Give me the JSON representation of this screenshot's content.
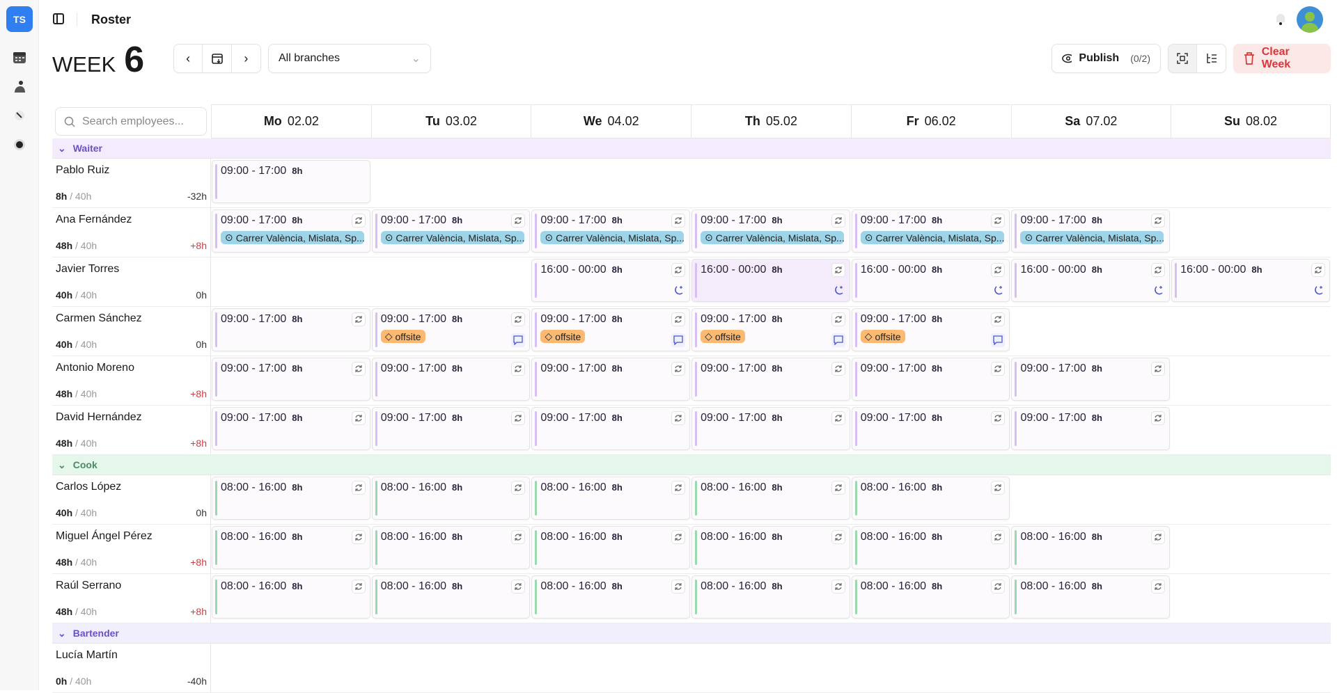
{
  "app": {
    "logo": "TS",
    "title": "Roster"
  },
  "sidebar": {
    "items": [
      {
        "icon": "calendar-icon"
      },
      {
        "icon": "users-icon"
      },
      {
        "icon": "tools-icon"
      },
      {
        "icon": "settings-icon"
      }
    ]
  },
  "week": {
    "label": "WEEK",
    "number": "6"
  },
  "branch": {
    "selected": "All branches"
  },
  "publish": {
    "label": "Publish",
    "count": "(0/2)"
  },
  "clear": {
    "label": "Clear Week"
  },
  "search": {
    "placeholder": "Search employees..."
  },
  "days": [
    {
      "d": "Mo",
      "date": "02.02"
    },
    {
      "d": "Tu",
      "date": "03.02"
    },
    {
      "d": "We",
      "date": "04.02"
    },
    {
      "d": "Th",
      "date": "05.02"
    },
    {
      "d": "Fr",
      "date": "06.02"
    },
    {
      "d": "Sa",
      "date": "07.02"
    },
    {
      "d": "Su",
      "date": "08.02"
    }
  ],
  "colors": {
    "Waiter": {
      "bg": "#f4ecfc",
      "fg": "#6a4fc7",
      "bar": "#d6bff2"
    },
    "Cook": {
      "bg": "#e5f6ea",
      "fg": "#4c8a63",
      "bar": "#9ad8ae"
    },
    "Bartender": {
      "bg": "#f1effc",
      "fg": "#6a4fc7",
      "bar": "#d6bff2"
    }
  },
  "location": "Carrer València, Mislata, Sp...",
  "tag": "offsite",
  "groups": [
    {
      "name": "Waiter",
      "employees": [
        {
          "name": "Pablo Ruiz",
          "hours": "8h",
          "target": "40h",
          "diff": "-32h",
          "shifts": [
            {
              "t": "09:00 - 17:00",
              "h": "8h",
              "nosync": true
            },
            null,
            null,
            null,
            null,
            null,
            null
          ]
        },
        {
          "name": "Ana Fernández",
          "hours": "48h",
          "target": "40h",
          "diff": "+8h",
          "shifts": [
            {
              "t": "09:00 - 17:00",
              "h": "8h",
              "loc": true
            },
            {
              "t": "09:00 - 17:00",
              "h": "8h",
              "loc": true
            },
            {
              "t": "09:00 - 17:00",
              "h": "8h",
              "loc": true
            },
            {
              "t": "09:00 - 17:00",
              "h": "8h",
              "loc": true
            },
            {
              "t": "09:00 - 17:00",
              "h": "8h",
              "loc": true
            },
            {
              "t": "09:00 - 17:00",
              "h": "8h",
              "loc": true
            },
            null
          ]
        },
        {
          "name": "Javier Torres",
          "hours": "40h",
          "target": "40h",
          "diff": "0h",
          "shifts": [
            null,
            null,
            {
              "t": "16:00 - 00:00",
              "h": "8h",
              "night": true
            },
            {
              "t": "16:00 - 00:00",
              "h": "8h",
              "night": true,
              "hl": true
            },
            {
              "t": "16:00 - 00:00",
              "h": "8h",
              "night": true
            },
            {
              "t": "16:00 - 00:00",
              "h": "8h",
              "night": true
            },
            {
              "t": "16:00 - 00:00",
              "h": "8h",
              "night": true
            }
          ]
        },
        {
          "name": "Carmen Sánchez",
          "hours": "40h",
          "target": "40h",
          "diff": "0h",
          "shifts": [
            {
              "t": "09:00 - 17:00",
              "h": "8h"
            },
            {
              "t": "09:00 - 17:00",
              "h": "8h",
              "tag": true
            },
            {
              "t": "09:00 - 17:00",
              "h": "8h",
              "tag": true
            },
            {
              "t": "09:00 - 17:00",
              "h": "8h",
              "tag": true
            },
            {
              "t": "09:00 - 17:00",
              "h": "8h",
              "tag": true
            },
            null,
            null
          ]
        },
        {
          "name": "Antonio Moreno",
          "hours": "48h",
          "target": "40h",
          "diff": "+8h",
          "shifts": [
            {
              "t": "09:00 - 17:00",
              "h": "8h"
            },
            {
              "t": "09:00 - 17:00",
              "h": "8h"
            },
            {
              "t": "09:00 - 17:00",
              "h": "8h"
            },
            {
              "t": "09:00 - 17:00",
              "h": "8h"
            },
            {
              "t": "09:00 - 17:00",
              "h": "8h"
            },
            {
              "t": "09:00 - 17:00",
              "h": "8h"
            },
            null
          ]
        },
        {
          "name": "David Hernández",
          "hours": "48h",
          "target": "40h",
          "diff": "+8h",
          "shifts": [
            {
              "t": "09:00 - 17:00",
              "h": "8h"
            },
            {
              "t": "09:00 - 17:00",
              "h": "8h"
            },
            {
              "t": "09:00 - 17:00",
              "h": "8h"
            },
            {
              "t": "09:00 - 17:00",
              "h": "8h"
            },
            {
              "t": "09:00 - 17:00",
              "h": "8h"
            },
            {
              "t": "09:00 - 17:00",
              "h": "8h"
            },
            null
          ]
        }
      ]
    },
    {
      "name": "Cook",
      "employees": [
        {
          "name": "Carlos López",
          "hours": "40h",
          "target": "40h",
          "diff": "0h",
          "shifts": [
            {
              "t": "08:00 - 16:00",
              "h": "8h"
            },
            {
              "t": "08:00 - 16:00",
              "h": "8h"
            },
            {
              "t": "08:00 - 16:00",
              "h": "8h"
            },
            {
              "t": "08:00 - 16:00",
              "h": "8h"
            },
            {
              "t": "08:00 - 16:00",
              "h": "8h"
            },
            null,
            null
          ]
        },
        {
          "name": "Miguel Ángel Pérez",
          "hours": "48h",
          "target": "40h",
          "diff": "+8h",
          "shifts": [
            {
              "t": "08:00 - 16:00",
              "h": "8h"
            },
            {
              "t": "08:00 - 16:00",
              "h": "8h"
            },
            {
              "t": "08:00 - 16:00",
              "h": "8h"
            },
            {
              "t": "08:00 - 16:00",
              "h": "8h"
            },
            {
              "t": "08:00 - 16:00",
              "h": "8h"
            },
            {
              "t": "08:00 - 16:00",
              "h": "8h"
            },
            null
          ]
        },
        {
          "name": "Raúl Serrano",
          "hours": "48h",
          "target": "40h",
          "diff": "+8h",
          "shifts": [
            {
              "t": "08:00 - 16:00",
              "h": "8h"
            },
            {
              "t": "08:00 - 16:00",
              "h": "8h"
            },
            {
              "t": "08:00 - 16:00",
              "h": "8h"
            },
            {
              "t": "08:00 - 16:00",
              "h": "8h"
            },
            {
              "t": "08:00 - 16:00",
              "h": "8h"
            },
            {
              "t": "08:00 - 16:00",
              "h": "8h"
            },
            null
          ]
        }
      ]
    },
    {
      "name": "Bartender",
      "employees": [
        {
          "name": "Lucía Martín",
          "hours": "0h",
          "target": "40h",
          "diff": "-40h",
          "shifts": [
            null,
            null,
            null,
            null,
            null,
            null,
            null
          ]
        }
      ]
    }
  ]
}
